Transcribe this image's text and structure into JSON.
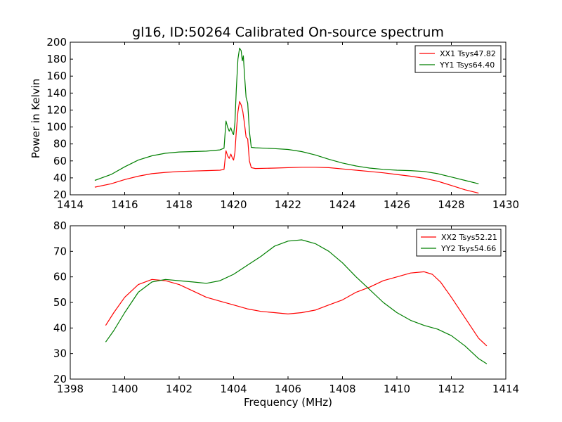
{
  "chart_data": [
    {
      "type": "line",
      "title": "gl16, ID:50264 Calibrated On-source spectrum",
      "xlabel": "",
      "ylabel": "Power in Kelvin",
      "xlim": [
        1414,
        1430
      ],
      "ylim": [
        20,
        200
      ],
      "xticks": [
        1414,
        1416,
        1418,
        1420,
        1422,
        1424,
        1426,
        1428,
        1430
      ],
      "yticks": [
        20,
        40,
        60,
        80,
        100,
        120,
        140,
        160,
        180,
        200
      ],
      "grid": false,
      "legend": "top-right",
      "series": [
        {
          "name": "XX1 Tsys47.82",
          "color": "#ff0000",
          "points": [
            [
              1414.9,
              29
            ],
            [
              1415.5,
              33
            ],
            [
              1416.0,
              38
            ],
            [
              1416.5,
              42
            ],
            [
              1417.0,
              45
            ],
            [
              1417.5,
              46.5
            ],
            [
              1418.0,
              47.5
            ],
            [
              1418.5,
              48
            ],
            [
              1419.0,
              48.5
            ],
            [
              1419.5,
              49
            ],
            [
              1419.65,
              50
            ],
            [
              1419.72,
              72
            ],
            [
              1419.78,
              66
            ],
            [
              1419.84,
              63
            ],
            [
              1419.9,
              68
            ],
            [
              1419.96,
              63
            ],
            [
              1420.0,
              61
            ],
            [
              1420.05,
              70
            ],
            [
              1420.1,
              95
            ],
            [
              1420.16,
              118
            ],
            [
              1420.22,
              130
            ],
            [
              1420.28,
              126
            ],
            [
              1420.34,
              118
            ],
            [
              1420.4,
              104
            ],
            [
              1420.46,
              88
            ],
            [
              1420.52,
              86
            ],
            [
              1420.58,
              60
            ],
            [
              1420.65,
              52
            ],
            [
              1420.8,
              51
            ],
            [
              1421.5,
              51.5
            ],
            [
              1422.0,
              52
            ],
            [
              1422.5,
              52.5
            ],
            [
              1423.0,
              52.5
            ],
            [
              1423.5,
              52
            ],
            [
              1424.0,
              50.5
            ],
            [
              1424.5,
              49
            ],
            [
              1425.0,
              47.5
            ],
            [
              1425.5,
              46
            ],
            [
              1426.0,
              44
            ],
            [
              1426.5,
              42
            ],
            [
              1427.0,
              39.5
            ],
            [
              1427.5,
              36
            ],
            [
              1428.0,
              31
            ],
            [
              1428.5,
              26
            ],
            [
              1429.0,
              22
            ]
          ]
        },
        {
          "name": "YY1 Tsys64.40",
          "color": "#007f00",
          "points": [
            [
              1414.9,
              37
            ],
            [
              1415.5,
              44
            ],
            [
              1416.0,
              53
            ],
            [
              1416.5,
              61
            ],
            [
              1417.0,
              66
            ],
            [
              1417.5,
              69
            ],
            [
              1418.0,
              70.5
            ],
            [
              1418.5,
              71
            ],
            [
              1419.0,
              71.5
            ],
            [
              1419.5,
              73
            ],
            [
              1419.65,
              75
            ],
            [
              1419.72,
              107
            ],
            [
              1419.78,
              100
            ],
            [
              1419.84,
              95
            ],
            [
              1419.9,
              99
            ],
            [
              1419.96,
              93
            ],
            [
              1420.0,
              91
            ],
            [
              1420.05,
              105
            ],
            [
              1420.1,
              145
            ],
            [
              1420.16,
              180
            ],
            [
              1420.22,
              193
            ],
            [
              1420.28,
              190
            ],
            [
              1420.32,
              178
            ],
            [
              1420.36,
              184
            ],
            [
              1420.4,
              162
            ],
            [
              1420.46,
              135
            ],
            [
              1420.52,
              128
            ],
            [
              1420.58,
              95
            ],
            [
              1420.65,
              76
            ],
            [
              1420.8,
              75.5
            ],
            [
              1421.5,
              74.5
            ],
            [
              1422.0,
              73.5
            ],
            [
              1422.5,
              71
            ],
            [
              1423.0,
              67
            ],
            [
              1423.5,
              62
            ],
            [
              1424.0,
              57.5
            ],
            [
              1424.5,
              54
            ],
            [
              1425.0,
              51.5
            ],
            [
              1425.5,
              50
            ],
            [
              1426.0,
              49
            ],
            [
              1426.5,
              48.5
            ],
            [
              1427.0,
              47.5
            ],
            [
              1427.5,
              45
            ],
            [
              1428.0,
              41
            ],
            [
              1428.5,
              37
            ],
            [
              1429.0,
              33
            ]
          ]
        }
      ]
    },
    {
      "type": "line",
      "title": "",
      "xlabel": "Frequency (MHz)",
      "ylabel": "",
      "xlim": [
        1398,
        1414
      ],
      "ylim": [
        20,
        80
      ],
      "xticks": [
        1398,
        1400,
        1402,
        1404,
        1406,
        1408,
        1410,
        1412,
        1414
      ],
      "yticks": [
        20,
        30,
        40,
        50,
        60,
        70,
        80
      ],
      "grid": false,
      "legend": "top-right",
      "series": [
        {
          "name": "XX2 Tsys52.21",
          "color": "#ff0000",
          "points": [
            [
              1399.3,
              41
            ],
            [
              1399.6,
              46
            ],
            [
              1400.0,
              52
            ],
            [
              1400.5,
              57
            ],
            [
              1401.0,
              59
            ],
            [
              1401.5,
              58.5
            ],
            [
              1402.0,
              57
            ],
            [
              1402.5,
              54.5
            ],
            [
              1403.0,
              52
            ],
            [
              1403.5,
              50.5
            ],
            [
              1404.0,
              49
            ],
            [
              1404.5,
              47.5
            ],
            [
              1405.0,
              46.5
            ],
            [
              1405.5,
              46
            ],
            [
              1406.0,
              45.5
            ],
            [
              1406.5,
              46
            ],
            [
              1407.0,
              47
            ],
            [
              1407.5,
              49
            ],
            [
              1408.0,
              51
            ],
            [
              1408.5,
              54
            ],
            [
              1409.0,
              56
            ],
            [
              1409.5,
              58.5
            ],
            [
              1410.0,
              60
            ],
            [
              1410.5,
              61.5
            ],
            [
              1411.0,
              62
            ],
            [
              1411.3,
              61
            ],
            [
              1411.6,
              58
            ],
            [
              1412.0,
              52
            ],
            [
              1412.5,
              44
            ],
            [
              1413.0,
              36
            ],
            [
              1413.3,
              33
            ]
          ]
        },
        {
          "name": "YY2 Tsys54.66",
          "color": "#007f00",
          "points": [
            [
              1399.3,
              34.5
            ],
            [
              1399.6,
              39
            ],
            [
              1400.0,
              46
            ],
            [
              1400.5,
              54
            ],
            [
              1401.0,
              58
            ],
            [
              1401.5,
              59
            ],
            [
              1402.0,
              58.5
            ],
            [
              1402.5,
              58
            ],
            [
              1403.0,
              57.5
            ],
            [
              1403.5,
              58.5
            ],
            [
              1404.0,
              61
            ],
            [
              1404.5,
              64.5
            ],
            [
              1405.0,
              68
            ],
            [
              1405.5,
              72
            ],
            [
              1406.0,
              74
            ],
            [
              1406.5,
              74.5
            ],
            [
              1407.0,
              73
            ],
            [
              1407.5,
              70
            ],
            [
              1408.0,
              65.5
            ],
            [
              1408.5,
              60
            ],
            [
              1409.0,
              55
            ],
            [
              1409.5,
              50
            ],
            [
              1410.0,
              46
            ],
            [
              1410.5,
              43
            ],
            [
              1411.0,
              41
            ],
            [
              1411.5,
              39.5
            ],
            [
              1412.0,
              37
            ],
            [
              1412.5,
              33
            ],
            [
              1413.0,
              28
            ],
            [
              1413.3,
              26
            ]
          ]
        }
      ]
    }
  ]
}
